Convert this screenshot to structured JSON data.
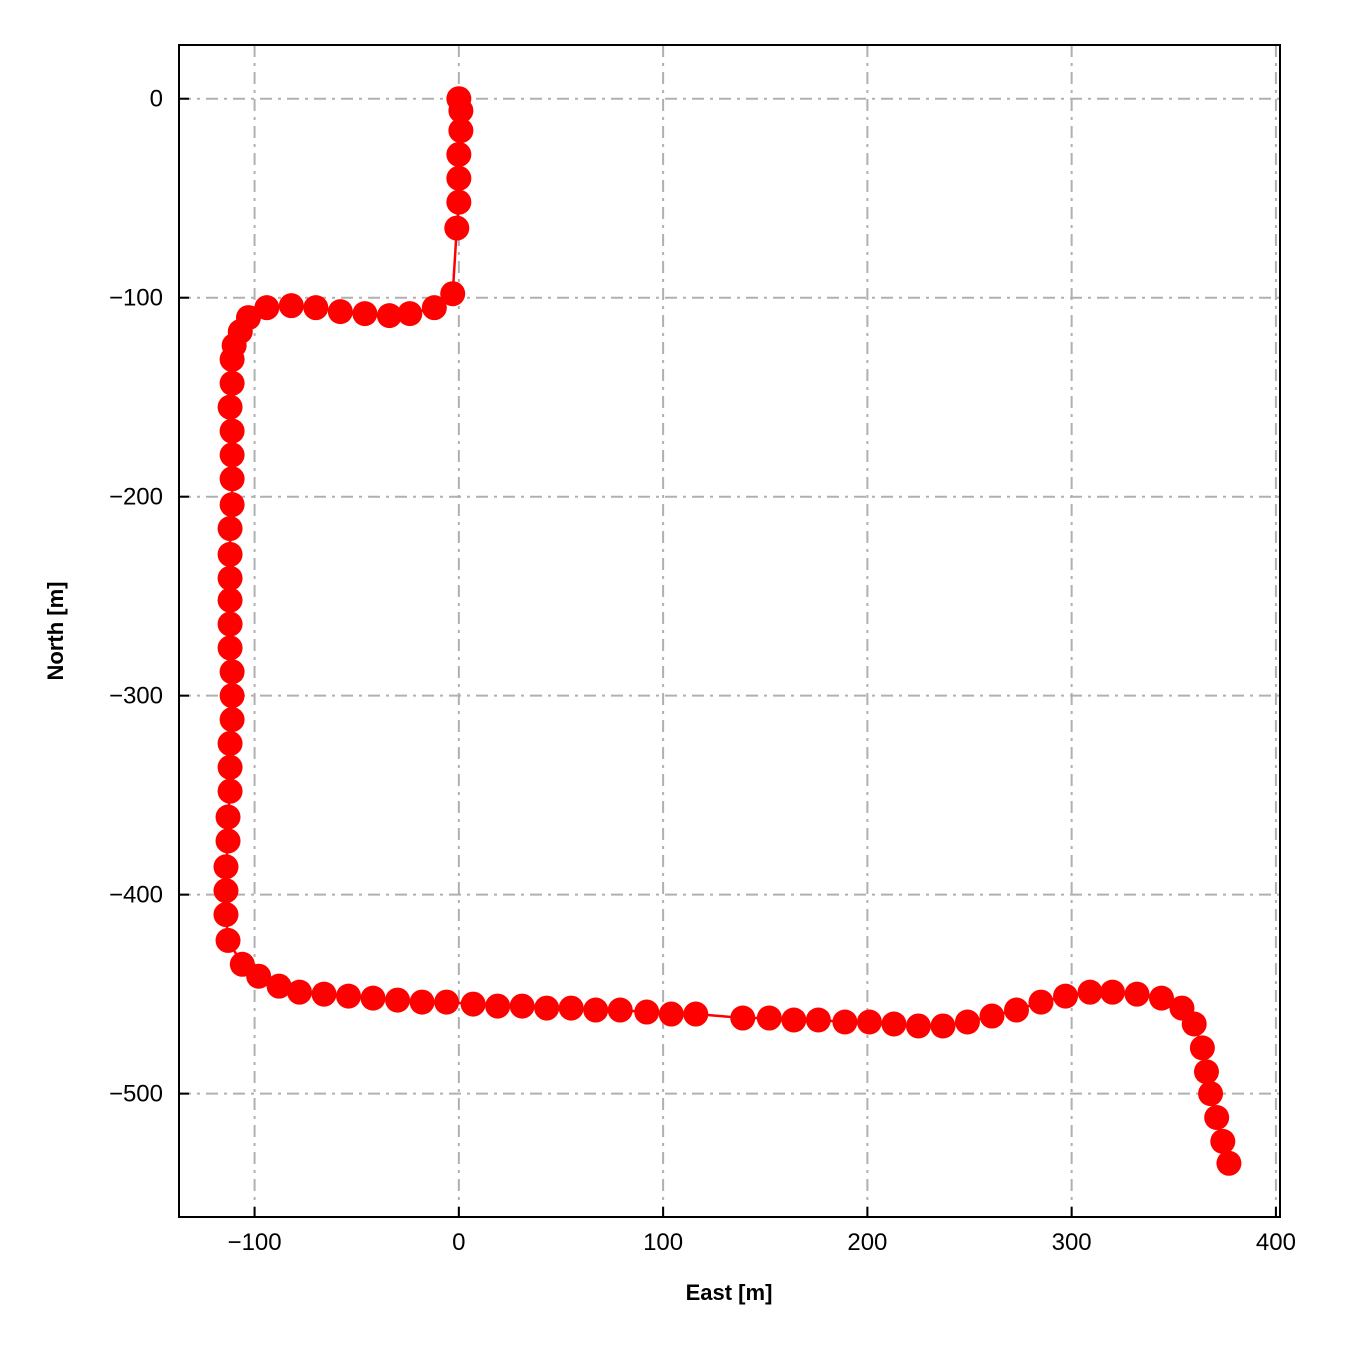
{
  "chart_data": {
    "type": "line",
    "title": "",
    "xlabel": "East [m]",
    "ylabel": "North [m]",
    "xlim": [
      -137,
      402
    ],
    "ylim": [
      -562,
      27
    ],
    "xticks": [
      -100,
      0,
      100,
      200,
      300,
      400
    ],
    "yticks": [
      0,
      -100,
      -200,
      -300,
      -400,
      -500
    ],
    "xtick_labels": [
      "−100",
      "0",
      "100",
      "200",
      "300",
      "400"
    ],
    "ytick_labels": [
      "0",
      "−100",
      "−200",
      "−300",
      "−400",
      "−500"
    ],
    "grid": true,
    "grid_style": "dash-dot",
    "colors": {
      "series": "#ff0000",
      "grid": "#b0b0b0"
    },
    "series": [
      {
        "marker": "circle",
        "points": [
          [
            0,
            0
          ],
          [
            1,
            -6
          ],
          [
            1,
            -16
          ],
          [
            0,
            -28
          ],
          [
            0,
            -40
          ],
          [
            0,
            -52
          ],
          [
            -1,
            -65
          ],
          [
            -3,
            -98
          ],
          [
            -12,
            -105
          ],
          [
            -24,
            -108
          ],
          [
            -34,
            -109
          ],
          [
            -46,
            -108
          ],
          [
            -58,
            -107
          ],
          [
            -70,
            -105
          ],
          [
            -82,
            -104
          ],
          [
            -94,
            -105
          ],
          [
            -103,
            -110
          ],
          [
            -107,
            -117
          ],
          [
            -110,
            -124
          ],
          [
            -111,
            -131
          ],
          [
            -111,
            -143
          ],
          [
            -112,
            -155
          ],
          [
            -111,
            -167
          ],
          [
            -111,
            -179
          ],
          [
            -111,
            -191
          ],
          [
            -111,
            -204
          ],
          [
            -112,
            -216
          ],
          [
            -112,
            -229
          ],
          [
            -112,
            -241
          ],
          [
            -112,
            -252
          ],
          [
            -112,
            -264
          ],
          [
            -112,
            -276
          ],
          [
            -111,
            -288
          ],
          [
            -111,
            -300
          ],
          [
            -111,
            -312
          ],
          [
            -112,
            -324
          ],
          [
            -112,
            -336
          ],
          [
            -112,
            -348
          ],
          [
            -113,
            -361
          ],
          [
            -113,
            -373
          ],
          [
            -114,
            -386
          ],
          [
            -114,
            -398
          ],
          [
            -114,
            -410
          ],
          [
            -113,
            -423
          ],
          [
            -106,
            -435
          ],
          [
            -98,
            -441
          ],
          [
            -88,
            -446
          ],
          [
            -78,
            -449
          ],
          [
            -66,
            -450
          ],
          [
            -54,
            -451
          ],
          [
            -42,
            -452
          ],
          [
            -30,
            -453
          ],
          [
            -18,
            -454
          ],
          [
            -6,
            -454
          ],
          [
            7,
            -455
          ],
          [
            19,
            -456
          ],
          [
            31,
            -456
          ],
          [
            43,
            -457
          ],
          [
            55,
            -457
          ],
          [
            67,
            -458
          ],
          [
            79,
            -458
          ],
          [
            92,
            -459
          ],
          [
            104,
            -460
          ],
          [
            116,
            -460
          ],
          [
            139,
            -462
          ],
          [
            152,
            -462
          ],
          [
            164,
            -463
          ],
          [
            176,
            -463
          ],
          [
            189,
            -464
          ],
          [
            201,
            -464
          ],
          [
            213,
            -465
          ],
          [
            225,
            -466
          ],
          [
            237,
            -466
          ],
          [
            249,
            -464
          ],
          [
            261,
            -461
          ],
          [
            273,
            -458
          ],
          [
            285,
            -454
          ],
          [
            297,
            -451
          ],
          [
            309,
            -449
          ],
          [
            320,
            -449
          ],
          [
            332,
            -450
          ],
          [
            344,
            -452
          ],
          [
            354,
            -457
          ],
          [
            360,
            -465
          ],
          [
            364,
            -477
          ],
          [
            366,
            -489
          ],
          [
            368,
            -500
          ],
          [
            371,
            -512
          ],
          [
            374,
            -524
          ],
          [
            377,
            -535
          ]
        ]
      }
    ]
  }
}
